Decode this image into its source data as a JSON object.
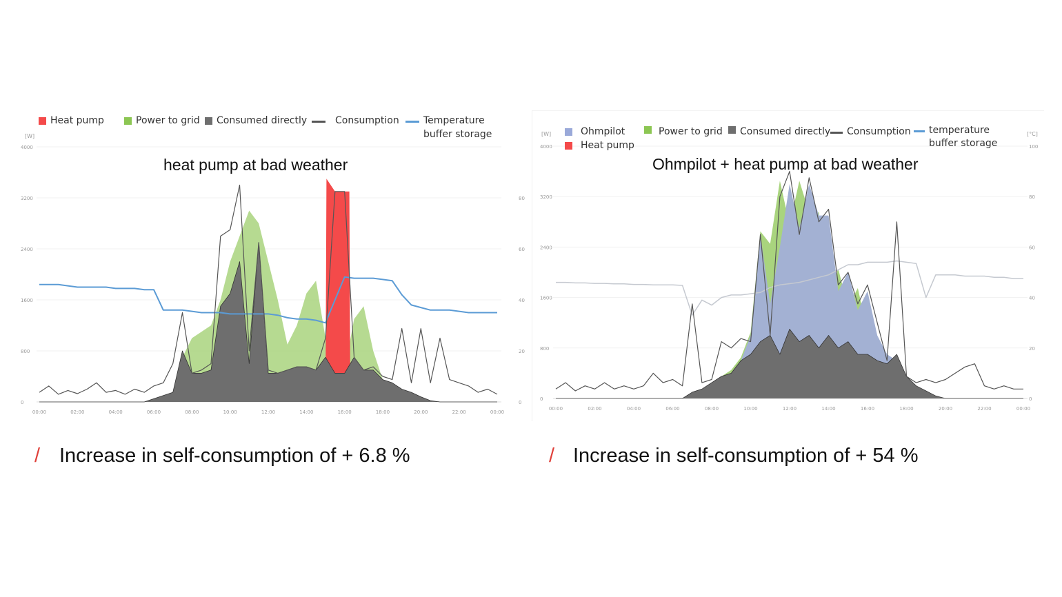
{
  "colors": {
    "heat_pump": "#f44a4a",
    "power_to_grid": "#a9d47e",
    "consumed_directly": "#6e6e6e",
    "consumption": "#555555",
    "temperature": "#5b9bd5",
    "ohmpilot": "#a3b1d3",
    "temperature_right": "#c5c9d0",
    "slash": "#e0403a"
  },
  "chart_data": [
    {
      "type": "area",
      "title": "heat pump at bad weather",
      "ylabel": "[W]",
      "ylim": [
        0,
        4000
      ],
      "yticks": [
        "0",
        "800",
        "1600",
        "2400",
        "3200",
        "4000"
      ],
      "y2lim": [
        0,
        100
      ],
      "y2ticks": [
        "0",
        "20",
        "40",
        "60",
        "80"
      ],
      "xticks": [
        "00:00",
        "02:00",
        "04:00",
        "06:00",
        "08:00",
        "10:00",
        "12:00",
        "14:00",
        "16:00",
        "18:00",
        "20:00",
        "22:00",
        "00:00"
      ],
      "legend": [
        {
          "label": "Heat pump",
          "kind": "box",
          "color_key": "heat_pump"
        },
        {
          "label": "Power to grid",
          "kind": "box",
          "color_key": "power_to_grid"
        },
        {
          "label": "Consumed directly",
          "kind": "box",
          "color_key": "consumed_directly"
        },
        {
          "label": "Consumption",
          "kind": "line",
          "color_key": "consumption"
        },
        {
          "label": "Temperature buffer storage",
          "kind": "line",
          "color_key": "temperature"
        }
      ],
      "x": [
        0,
        0.5,
        1,
        1.5,
        2,
        2.5,
        3,
        3.5,
        4,
        4.5,
        5,
        5.5,
        6,
        6.5,
        7,
        7.5,
        8,
        8.5,
        9,
        9.5,
        10,
        10.5,
        11,
        11.5,
        12,
        12.5,
        13,
        13.5,
        14,
        14.5,
        15,
        15.5,
        16,
        16.5,
        17,
        17.5,
        18,
        18.5,
        19,
        19.5,
        20,
        20.5,
        21,
        21.5,
        22,
        22.5,
        23,
        23.5,
        24
      ],
      "series": {
        "power_to_grid": [
          0,
          0,
          0,
          0,
          0,
          0,
          0,
          0,
          0,
          0,
          0,
          0,
          0,
          0,
          100,
          700,
          1000,
          1100,
          1200,
          1600,
          2200,
          2600,
          3000,
          2800,
          2200,
          1600,
          900,
          1200,
          1700,
          1900,
          1000,
          500,
          500,
          1300,
          1500,
          800,
          350,
          250,
          50,
          0,
          0,
          0,
          0,
          0,
          0,
          0,
          0,
          0,
          0
        ],
        "consumed_directly": [
          0,
          0,
          0,
          0,
          0,
          0,
          0,
          0,
          0,
          0,
          0,
          0,
          50,
          100,
          150,
          800,
          450,
          450,
          500,
          1500,
          1700,
          2200,
          600,
          2500,
          450,
          450,
          500,
          550,
          550,
          500,
          700,
          450,
          450,
          700,
          500,
          500,
          350,
          300,
          200,
          150,
          80,
          20,
          0,
          0,
          0,
          0,
          0,
          0,
          0
        ],
        "consumption": [
          150,
          250,
          120,
          180,
          130,
          200,
          300,
          150,
          180,
          120,
          200,
          150,
          250,
          300,
          600,
          1400,
          450,
          500,
          600,
          2600,
          2700,
          3400,
          800,
          2500,
          500,
          450,
          500,
          550,
          550,
          500,
          1000,
          3300,
          3300,
          700,
          500,
          550,
          400,
          350,
          1150,
          300,
          1150,
          300,
          1000,
          350,
          300,
          250,
          150,
          200,
          120
        ],
        "temperature": [
          46,
          46,
          46,
          45.5,
          45,
          45,
          45,
          45,
          44.5,
          44.5,
          44.5,
          44,
          44,
          36,
          36,
          36,
          35.5,
          35,
          35,
          35,
          34.5,
          34.5,
          34.5,
          34.5,
          34.5,
          34,
          33,
          32.5,
          32.5,
          32,
          31,
          40,
          49,
          48.5,
          48.5,
          48.5,
          48,
          47.5,
          42,
          38,
          37,
          36,
          36,
          36,
          35.5,
          35,
          35,
          35,
          35
        ]
      },
      "heat_pump": {
        "x": [
          15,
          15.05,
          15.5,
          16,
          16.25,
          16.3
        ],
        "values": [
          0,
          3500,
          3300,
          3300,
          3300,
          0
        ]
      }
    },
    {
      "type": "area",
      "title": "Ohmpilot + heat pump at bad weather",
      "ylabel": "[W]",
      "y2label": "[°C]",
      "ylim": [
        0,
        4000
      ],
      "yticks": [
        "0",
        "800",
        "1600",
        "2400",
        "3200",
        "4000"
      ],
      "y2lim": [
        0,
        100
      ],
      "y2ticks": [
        "0",
        "20",
        "40",
        "60",
        "80",
        "100"
      ],
      "xticks": [
        "00:00",
        "02:00",
        "04:00",
        "06:00",
        "08:00",
        "10:00",
        "12:00",
        "14:00",
        "16:00",
        "18:00",
        "20:00",
        "22:00",
        "00:00"
      ],
      "legend": [
        {
          "label": "Ohmpilot",
          "kind": "box",
          "color_key": "ohmpilot"
        },
        {
          "label": "Heat pump",
          "kind": "box",
          "color_key": "heat_pump"
        },
        {
          "label": "Power to grid",
          "kind": "box",
          "color_key": "power_to_grid"
        },
        {
          "label": "Consumed directly",
          "kind": "box",
          "color_key": "consumed_directly"
        },
        {
          "label": "Consumption",
          "kind": "line",
          "color_key": "consumption"
        },
        {
          "label": "temperature buffer storage",
          "kind": "line",
          "color_key": "temperature"
        }
      ],
      "x": [
        0,
        0.5,
        1,
        1.5,
        2,
        2.5,
        3,
        3.5,
        4,
        4.5,
        5,
        5.5,
        6,
        6.5,
        7,
        7.5,
        8,
        8.5,
        9,
        9.5,
        10,
        10.5,
        11,
        11.5,
        12,
        12.5,
        13,
        13.5,
        14,
        14.5,
        15,
        15.5,
        16,
        16.5,
        17,
        17.5,
        18,
        18.5,
        19,
        19.5,
        20,
        20.5,
        21,
        21.5,
        22,
        22.5,
        23,
        23.5,
        24
      ],
      "series": {
        "power_to_grid": [
          0,
          0,
          0,
          0,
          0,
          0,
          0,
          0,
          0,
          0,
          0,
          0,
          0,
          0,
          0,
          100,
          200,
          350,
          450,
          650,
          1050,
          2650,
          2450,
          3450,
          2750,
          3450,
          2950,
          2950,
          1750,
          2050,
          1450,
          1750,
          1050,
          750,
          650,
          300,
          150,
          0,
          0,
          0,
          0,
          0,
          0,
          0,
          0,
          0,
          0,
          0,
          0
        ],
        "ohmpilot": [
          0,
          0,
          0,
          0,
          0,
          0,
          0,
          0,
          0,
          0,
          0,
          0,
          0,
          0,
          0,
          50,
          150,
          300,
          400,
          600,
          1000,
          2600,
          1500,
          2400,
          3400,
          2700,
          3400,
          2900,
          2900,
          1700,
          2000,
          1400,
          1700,
          1000,
          700,
          600,
          250,
          100,
          0,
          0,
          0,
          0,
          0,
          0,
          0,
          0,
          0,
          0,
          0
        ],
        "consumed_directly": [
          0,
          0,
          0,
          0,
          0,
          0,
          0,
          0,
          0,
          0,
          0,
          0,
          0,
          0,
          100,
          150,
          250,
          350,
          400,
          600,
          700,
          900,
          1000,
          700,
          1100,
          900,
          1000,
          800,
          1000,
          800,
          900,
          700,
          700,
          600,
          550,
          700,
          350,
          200,
          120,
          40,
          0,
          0,
          0,
          0,
          0,
          0,
          0,
          0,
          0
        ],
        "consumption": [
          150,
          250,
          120,
          200,
          150,
          250,
          150,
          200,
          150,
          200,
          400,
          250,
          300,
          200,
          1500,
          250,
          300,
          900,
          800,
          950,
          900,
          2600,
          1000,
          3200,
          3600,
          2600,
          3500,
          2800,
          3000,
          1800,
          2000,
          1500,
          1800,
          1200,
          600,
          2800,
          350,
          250,
          300,
          250,
          300,
          400,
          500,
          550,
          200,
          150,
          200,
          150,
          150
        ],
        "temperature": [
          46,
          46,
          45.8,
          45.8,
          45.6,
          45.6,
          45.4,
          45.4,
          45.2,
          45.2,
          45,
          45,
          45,
          44.8,
          33,
          39,
          37,
          40,
          41,
          41,
          41.5,
          42,
          44,
          45,
          45.5,
          46,
          47,
          48,
          49,
          51,
          53,
          53,
          54,
          54,
          54,
          54.5,
          54,
          53.5,
          40,
          49,
          49,
          49,
          48.5,
          48.5,
          48.5,
          48,
          48,
          47.5,
          47.5
        ]
      }
    }
  ],
  "footer": {
    "left": {
      "slash": "/",
      "text": "Increase in self-consumption of + 6.8 %"
    },
    "right": {
      "slash": "/",
      "text": "Increase in self-consumption of + 54 %"
    }
  }
}
